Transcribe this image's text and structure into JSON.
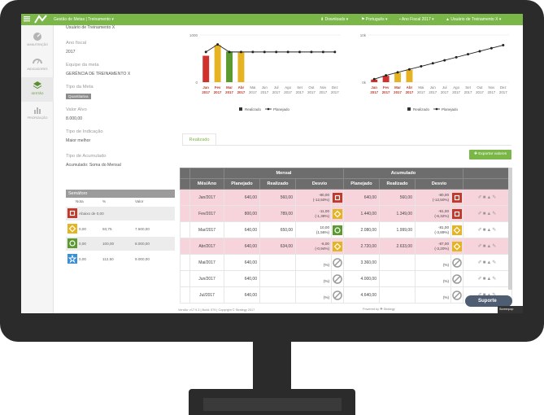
{
  "topbar": {
    "title": "Gestão de Metas | Treinamento ▾",
    "downloads": "⬇ Downloads ▾",
    "language": "⚑ Português ▾",
    "fiscal_year": "▪ Ano Fiscal 2017 ▾",
    "user": "▲ Usuário de Treinamento X ▾"
  },
  "sidebar": {
    "items": [
      {
        "label": "MANUTENÇÃO"
      },
      {
        "label": "INDICADORES"
      },
      {
        "label": "GESTÃO"
      },
      {
        "label": "PRIORIZAÇÃO"
      }
    ]
  },
  "info": {
    "user_top": "Usuário de Treinamento X",
    "fiscal_label": "Ano fiscal",
    "fiscal_value": "2017",
    "team_label": "Equipe da meta",
    "team_value": "GERÊNCIA DE TREINAMENTO X",
    "type_label": "Tipo da Meta",
    "type_value": "Quantitativa",
    "target_label": "Valor Alvo",
    "target_value": "8.000,00",
    "indication_label": "Tipo de Indicação",
    "indication_value": "Maior melhor",
    "accum_label": "Tipo de Acumulado",
    "accum_value": "Acumulado: Soma do Mensal"
  },
  "semaforo": {
    "title": "Semáforo",
    "col_nota": "Nota",
    "col_pct": "%",
    "col_valor": "Valor",
    "rows": [
      {
        "nota": "0,00",
        "pct": "",
        "valor": "",
        "text": "Abaixo de 0,00",
        "color": "#c0392b",
        "shape": "square"
      },
      {
        "nota": "0,00",
        "pct": "93,75",
        "valor": "7.500,00",
        "text": "",
        "color": "#e6b422",
        "shape": "diamond"
      },
      {
        "nota": "0,00",
        "pct": "100,00",
        "valor": "8.000,00",
        "text": "",
        "color": "#5a9a2e",
        "shape": "circle"
      },
      {
        "nota": "0,00",
        "pct": "112,50",
        "valor": "9.000,00",
        "text": "",
        "color": "#3a8fd6",
        "shape": "star"
      }
    ]
  },
  "chart_data": [
    {
      "type": "bar",
      "title": "",
      "ylim": [
        0,
        1000
      ],
      "y_ticks": [
        "1000",
        "0"
      ],
      "categories": [
        "Jan 2017",
        "Fev 2017",
        "Mar 2017",
        "Abr 2017",
        "Mai 2017",
        "Jun 2017",
        "Jul 2017",
        "Ago 2017",
        "Set 2017",
        "Out 2017",
        "Nov 2017",
        "Dez 2017"
      ],
      "month_labels": [
        "Jan",
        "Fev",
        "Mar",
        "Abr",
        "Mai",
        "Jun",
        "Jul",
        "Ago",
        "Set",
        "Out",
        "Nov",
        "Dez"
      ],
      "year_label": "2017",
      "series": [
        {
          "name": "Realizado",
          "values": [
            560,
            789,
            650,
            634,
            null,
            null,
            null,
            null,
            null,
            null,
            null,
            null
          ],
          "colors": [
            "#d0312d",
            "#e6b422",
            "#5a9a2e",
            "#e6b422"
          ]
        },
        {
          "name": "Planejado",
          "values": [
            640,
            800,
            640,
            640,
            640,
            640,
            640,
            640,
            640,
            640,
            640,
            640
          ]
        }
      ],
      "legend": [
        "Realizado",
        "Planejado"
      ]
    },
    {
      "type": "bar",
      "title": "",
      "ylim": [
        0,
        10000
      ],
      "y_ticks": [
        "10k",
        "0k"
      ],
      "categories": [
        "Jan 2017",
        "Fev 2017",
        "Mar 2017",
        "Abr 2017",
        "Mai 2017",
        "Jun 2017",
        "Jul 2017",
        "Ago 2017",
        "Set 2017",
        "Out 2017",
        "Nov 2017",
        "Dez 2017"
      ],
      "month_labels": [
        "Jan",
        "Fev",
        "Mar",
        "Abr",
        "Mai",
        "Jun",
        "Jul",
        "Ago",
        "Set",
        "Out",
        "Nov",
        "Dez"
      ],
      "year_label": "2017",
      "series": [
        {
          "name": "Realizado",
          "values": [
            560,
            1349,
            1999,
            2633,
            null,
            null,
            null,
            null,
            null,
            null,
            null,
            null
          ],
          "colors": [
            "#d0312d",
            "#d0312d",
            "#e6b422",
            "#e6b422"
          ]
        },
        {
          "name": "Planejado",
          "values": [
            640,
            1440,
            2080,
            2720,
            3360,
            4000,
            4640,
            5280,
            5920,
            6560,
            7200,
            7840
          ]
        }
      ],
      "legend": [
        "Realizado",
        "Planejado"
      ]
    }
  ],
  "tabs": {
    "realizado": "Realizado"
  },
  "export_label": "✚ Exportar valores",
  "table": {
    "group_mensal": "Mensal",
    "group_acumulado": "Acumulado",
    "col_mes": "Mês/Ano",
    "col_planejado": "Planejado",
    "col_realizado": "Realizado",
    "col_desvio": "Desvio",
    "rows": [
      {
        "mes": "Jan/2017",
        "plan": "640,00",
        "real": "560,00",
        "desv": "-80,00",
        "desv_pct": "(-12,50%)",
        "status": "red",
        "ac_plan": "640,00",
        "ac_real": "560,00",
        "ac_desv": "-80,00",
        "ac_desv_pct": "(-12,50%)",
        "ac_status": "red",
        "tone": "pink"
      },
      {
        "mes": "Fev/2017",
        "plan": "800,00",
        "real": "789,00",
        "desv": "-11,00",
        "desv_pct": "(-1,38%)",
        "status": "yellow",
        "ac_plan": "1.440,00",
        "ac_real": "1.349,00",
        "ac_desv": "-91,00",
        "ac_desv_pct": "(-6,32%)",
        "ac_status": "red",
        "tone": "pink"
      },
      {
        "mes": "Mar/2017",
        "plan": "640,00",
        "real": "650,00",
        "desv": "10,00",
        "desv_pct": "(1,56%)",
        "status": "green",
        "ac_plan": "2.080,00",
        "ac_real": "1.999,00",
        "ac_desv": "-81,00",
        "ac_desv_pct": "(-3,89%)",
        "ac_status": "yellow",
        "tone": "white"
      },
      {
        "mes": "Abr/2017",
        "plan": "640,00",
        "real": "634,00",
        "desv": "-6,00",
        "desv_pct": "(-0,94%)",
        "status": "yellow",
        "ac_plan": "2.720,00",
        "ac_real": "2.633,00",
        "ac_desv": "-87,00",
        "ac_desv_pct": "(-3,20%)",
        "ac_status": "yellow",
        "tone": "pink"
      },
      {
        "mes": "Mai/2017",
        "plan": "640,00",
        "real": "",
        "desv": "",
        "desv_pct": "(%)",
        "status": "none",
        "ac_plan": "3.360,00",
        "ac_real": "",
        "ac_desv": "",
        "ac_desv_pct": "(%)",
        "ac_status": "none",
        "tone": "white"
      },
      {
        "mes": "Jun/2017",
        "plan": "640,00",
        "real": "",
        "desv": "",
        "desv_pct": "(%)",
        "status": "none",
        "ac_plan": "4.000,00",
        "ac_real": "",
        "ac_desv": "",
        "ac_desv_pct": "(%)",
        "ac_status": "none",
        "tone": "white"
      },
      {
        "mes": "Jul/2017",
        "plan": "640,00",
        "real": "",
        "desv": "",
        "desv_pct": "(%)",
        "status": "none",
        "ac_plan": "4.640,00",
        "ac_real": "",
        "ac_desv": "",
        "ac_desv_pct": "(%)",
        "ac_status": "none",
        "tone": "white"
      }
    ]
  },
  "footer": {
    "version": "Versão: v17.9.3 | Build: 579 | Copyright © Strategy 2017",
    "powered": "Powered by ☘ Strategy"
  },
  "suporte": "Suporte",
  "screenpop": "Screenpop"
}
